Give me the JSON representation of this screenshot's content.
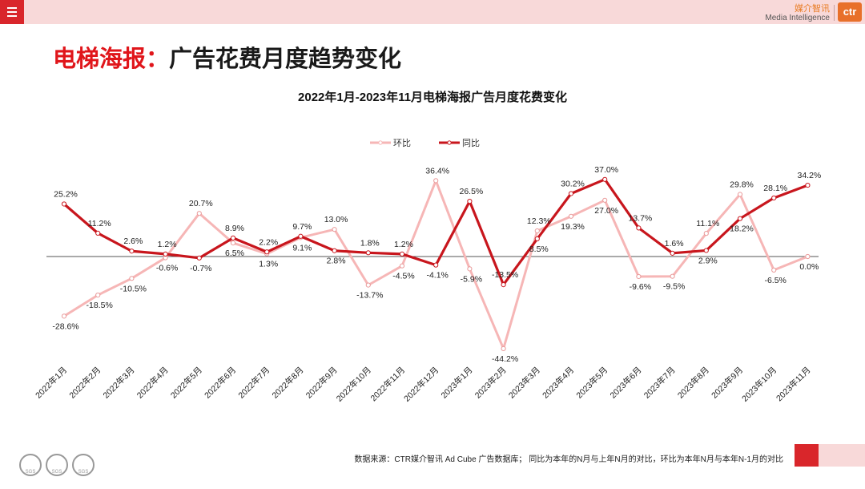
{
  "header": {
    "brand_cn": "媒介智讯",
    "brand_en": "Media Intelligence",
    "logo_text": "ctr"
  },
  "page": {
    "title_highlight": "电梯海报：",
    "title_rest": "广告花费月度趋势变化"
  },
  "footer": {
    "source": "数据来源：CTR媒介智讯 Ad Cube 广告数据库； 同比为本年的N月与上年N月的对比，环比为本年N月与本年N-1月的对比",
    "seal_text": "SGS"
  },
  "chart_data": {
    "type": "line",
    "title": "2022年1月-2023年11月电梯海报广告月度花费变化",
    "categories": [
      "2022年1月",
      "2022年2月",
      "2022年3月",
      "2022年4月",
      "2022年5月",
      "2022年6月",
      "2022年7月",
      "2022年8月",
      "2022年9月",
      "2022年10月",
      "2022年11月",
      "2022年12月",
      "2023年1月",
      "2023年2月",
      "2023年3月",
      "2023年4月",
      "2023年5月",
      "2023年6月",
      "2023年7月",
      "2023年8月",
      "2023年9月",
      "2023年10月",
      "2023年11月"
    ],
    "series": [
      {
        "name": "环比",
        "color": "#f6b6b6",
        "values": [
          -28.6,
          -18.5,
          -10.5,
          -0.6,
          20.7,
          6.5,
          1.3,
          9.1,
          13.0,
          -13.7,
          -4.5,
          36.4,
          -5.9,
          -44.2,
          12.3,
          19.3,
          27.0,
          -9.6,
          -9.5,
          11.1,
          29.8,
          -6.5,
          0.0
        ],
        "labels": [
          "-28.6%",
          "-18.5%",
          "-10.5%",
          "-0.6%",
          "20.7%",
          "6.5%",
          "1.3%",
          "9.1%",
          "13.0%",
          "-13.7%",
          "-4.5%",
          "36.4%",
          "-5.9%",
          "-44.2%",
          "12.3%",
          "19.3%",
          "27.0%",
          "-9.6%",
          "-9.5%",
          "11.1%",
          "29.8%",
          "-6.5%",
          "0.0%"
        ]
      },
      {
        "name": "同比",
        "color": "#c8161d",
        "values": [
          25.2,
          11.2,
          2.6,
          1.2,
          -0.7,
          8.9,
          2.2,
          9.7,
          2.8,
          1.8,
          1.2,
          -4.1,
          26.5,
          -13.5,
          8.5,
          30.2,
          37.0,
          13.7,
          1.6,
          2.9,
          18.2,
          28.1,
          34.2
        ],
        "labels": [
          "25.2%",
          "11.2%",
          "2.6%",
          "1.2%",
          "-0.7%",
          "8.9%",
          "2.2%",
          "9.7%",
          "2.8%",
          "1.8%",
          "1.2%",
          "-4.1%",
          "26.5%",
          "-13.5%",
          "8.5%",
          "30.2%",
          "37.0%",
          "13.7%",
          "1.6%",
          "2.9%",
          "18.2%",
          "28.1%",
          "34.2%"
        ]
      }
    ],
    "legend_position": "top-center",
    "grid": false,
    "ylim": [
      -50,
      45
    ]
  }
}
